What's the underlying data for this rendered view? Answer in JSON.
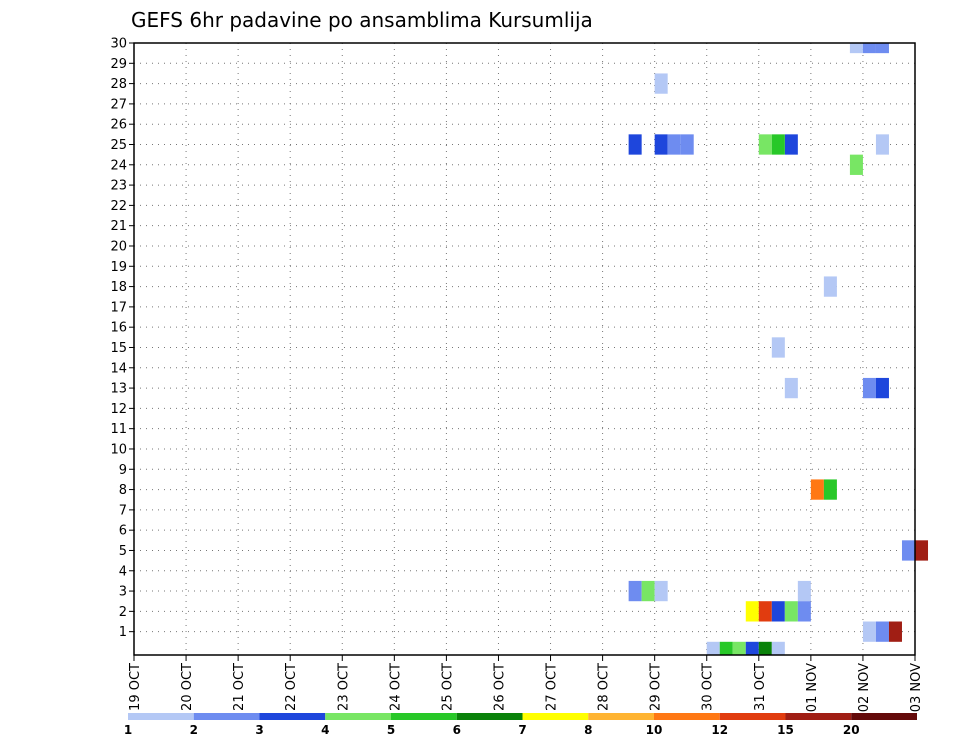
{
  "chart_data": {
    "type": "heatmap",
    "title": "GEFS 6hr padavine po ansamblima Kursumlija",
    "xlabel": "",
    "ylabel": "",
    "x_ticks": [
      "19 OCT",
      "20 OCT",
      "21 OCT",
      "22 OCT",
      "23 OCT",
      "24 OCT",
      "25 OCT",
      "26 OCT",
      "27 OCT",
      "28 OCT",
      "29 OCT",
      "30 OCT",
      "31 OCT",
      "01 NOV",
      "02 NOV",
      "03 NOV"
    ],
    "x_range_days": [
      0,
      15
    ],
    "y_ticks": [
      "1",
      "2",
      "3",
      "4",
      "5",
      "6",
      "7",
      "8",
      "9",
      "10",
      "11",
      "12",
      "13",
      "14",
      "15",
      "16",
      "17",
      "18",
      "19",
      "20",
      "21",
      "22",
      "23",
      "24",
      "25",
      "26",
      "27",
      "28",
      "29",
      "30"
    ],
    "y_range": [
      0,
      30
    ],
    "grid": true,
    "legend_placement": "bottom",
    "colorbar": {
      "labels": [
        "1",
        "2",
        "3",
        "4",
        "5",
        "6",
        "7",
        "8",
        "10",
        "12",
        "15",
        "20"
      ],
      "colors": [
        "#b4c8f5",
        "#6e8cf0",
        "#1e46dc",
        "#78e664",
        "#28c828",
        "#0a820a",
        "#ffff00",
        "#ffb432",
        "#ff7814",
        "#e13c0f",
        "#a01e14",
        "#640a0a"
      ]
    },
    "cells": [
      {
        "date": "28 OCT 12Z",
        "member": 25,
        "value": 3
      },
      {
        "date": "29 OCT 00Z",
        "member": 25,
        "value": 3
      },
      {
        "date": "29 OCT 06Z",
        "member": 25,
        "value": 2
      },
      {
        "date": "29 OCT 12Z",
        "member": 25,
        "value": 2
      },
      {
        "date": "31 OCT 12Z",
        "member": 25,
        "value": 3
      },
      {
        "date": "31 OCT 00Z",
        "member": 25,
        "value": 4
      },
      {
        "date": "31 OCT 06Z",
        "member": 25,
        "value": 5
      },
      {
        "date": "29 OCT 00Z",
        "member": 28,
        "value": 1
      },
      {
        "date": "01 NOV 18Z",
        "member": 30,
        "value": 1
      },
      {
        "date": "02 NOV 00Z",
        "member": 30,
        "value": 2
      },
      {
        "date": "02 NOV 06Z",
        "member": 30,
        "value": 2
      },
      {
        "date": "02 NOV 06Z",
        "member": 25,
        "value": 1
      },
      {
        "date": "01 NOV 18Z",
        "member": 24,
        "value": 4
      },
      {
        "date": "01 NOV 06Z",
        "member": 18,
        "value": 1
      },
      {
        "date": "31 OCT 06Z",
        "member": 15,
        "value": 1
      },
      {
        "date": "31 OCT 12Z",
        "member": 13,
        "value": 1
      },
      {
        "date": "02 NOV 00Z",
        "member": 13,
        "value": 2
      },
      {
        "date": "02 NOV 06Z",
        "member": 13,
        "value": 3
      },
      {
        "date": "01 NOV 00Z",
        "member": 8,
        "value": 10
      },
      {
        "date": "01 NOV 06Z",
        "member": 8,
        "value": 5
      },
      {
        "date": "02 NOV 18Z",
        "member": 5,
        "value": 2
      },
      {
        "date": "03 NOV 00Z",
        "member": 5,
        "value": 15
      },
      {
        "date": "28 OCT 12Z",
        "member": 3,
        "value": 2
      },
      {
        "date": "28 OCT 18Z",
        "member": 3,
        "value": 4
      },
      {
        "date": "29 OCT 00Z",
        "member": 3,
        "value": 1
      },
      {
        "date": "31 OCT 18Z",
        "member": 3,
        "value": 1
      },
      {
        "date": "30 OCT 18Z",
        "member": 2,
        "value": 7
      },
      {
        "date": "31 OCT 00Z",
        "member": 2,
        "value": 12
      },
      {
        "date": "31 OCT 06Z",
        "member": 2,
        "value": 3
      },
      {
        "date": "31 OCT 12Z",
        "member": 2,
        "value": 4
      },
      {
        "date": "31 OCT 18Z",
        "member": 2,
        "value": 2
      },
      {
        "date": "02 NOV 00Z",
        "member": 1,
        "value": 1
      },
      {
        "date": "02 NOV 06Z",
        "member": 1,
        "value": 2
      },
      {
        "date": "02 NOV 12Z",
        "member": 1,
        "value": 15
      },
      {
        "date": "30 OCT 00Z",
        "member": 0,
        "value": 1
      },
      {
        "date": "30 OCT 06Z",
        "member": 0,
        "value": 5
      },
      {
        "date": "30 OCT 12Z",
        "member": 0,
        "value": 4
      },
      {
        "date": "30 OCT 18Z",
        "member": 0,
        "value": 3
      },
      {
        "date": "31 OCT 00Z",
        "member": 0,
        "value": 6
      },
      {
        "date": "31 OCT 06Z",
        "member": 0,
        "value": 1
      }
    ]
  }
}
